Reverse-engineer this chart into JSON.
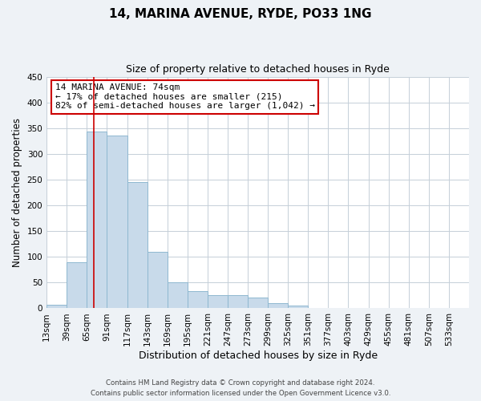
{
  "title": "14, MARINA AVENUE, RYDE, PO33 1NG",
  "subtitle": "Size of property relative to detached houses in Ryde",
  "xlabel": "Distribution of detached houses by size in Ryde",
  "ylabel": "Number of detached properties",
  "bar_color": "#c8daea",
  "bar_edge_color": "#8fb8d0",
  "annotation_box_color": "#cc0000",
  "vline_color": "#cc0000",
  "vline_x": 74,
  "annotation_line1": "14 MARINA AVENUE: 74sqm",
  "annotation_line2": "← 17% of detached houses are smaller (215)",
  "annotation_line3": "82% of semi-detached houses are larger (1,042) →",
  "footer1": "Contains HM Land Registry data © Crown copyright and database right 2024.",
  "footer2": "Contains public sector information licensed under the Open Government Licence v3.0.",
  "bin_edges": [
    13,
    39,
    65,
    91,
    117,
    143,
    169,
    195,
    221,
    247,
    273,
    299,
    325,
    351,
    377,
    403,
    429,
    455,
    481,
    507,
    533,
    559
  ],
  "bin_counts": [
    7,
    89,
    343,
    335,
    245,
    110,
    50,
    33,
    25,
    25,
    21,
    10,
    5,
    0,
    1,
    0,
    0,
    0,
    0,
    0,
    1
  ],
  "xlim": [
    13,
    559
  ],
  "ylim": [
    0,
    450
  ],
  "yticks": [
    0,
    50,
    100,
    150,
    200,
    250,
    300,
    350,
    400,
    450
  ],
  "background_color": "#eef2f6",
  "plot_background": "#ffffff",
  "grid_color": "#c5cfd8",
  "title_fontsize": 11,
  "subtitle_fontsize": 9,
  "tick_fontsize": 7.5,
  "ylabel_fontsize": 8.5,
  "xlabel_fontsize": 9
}
